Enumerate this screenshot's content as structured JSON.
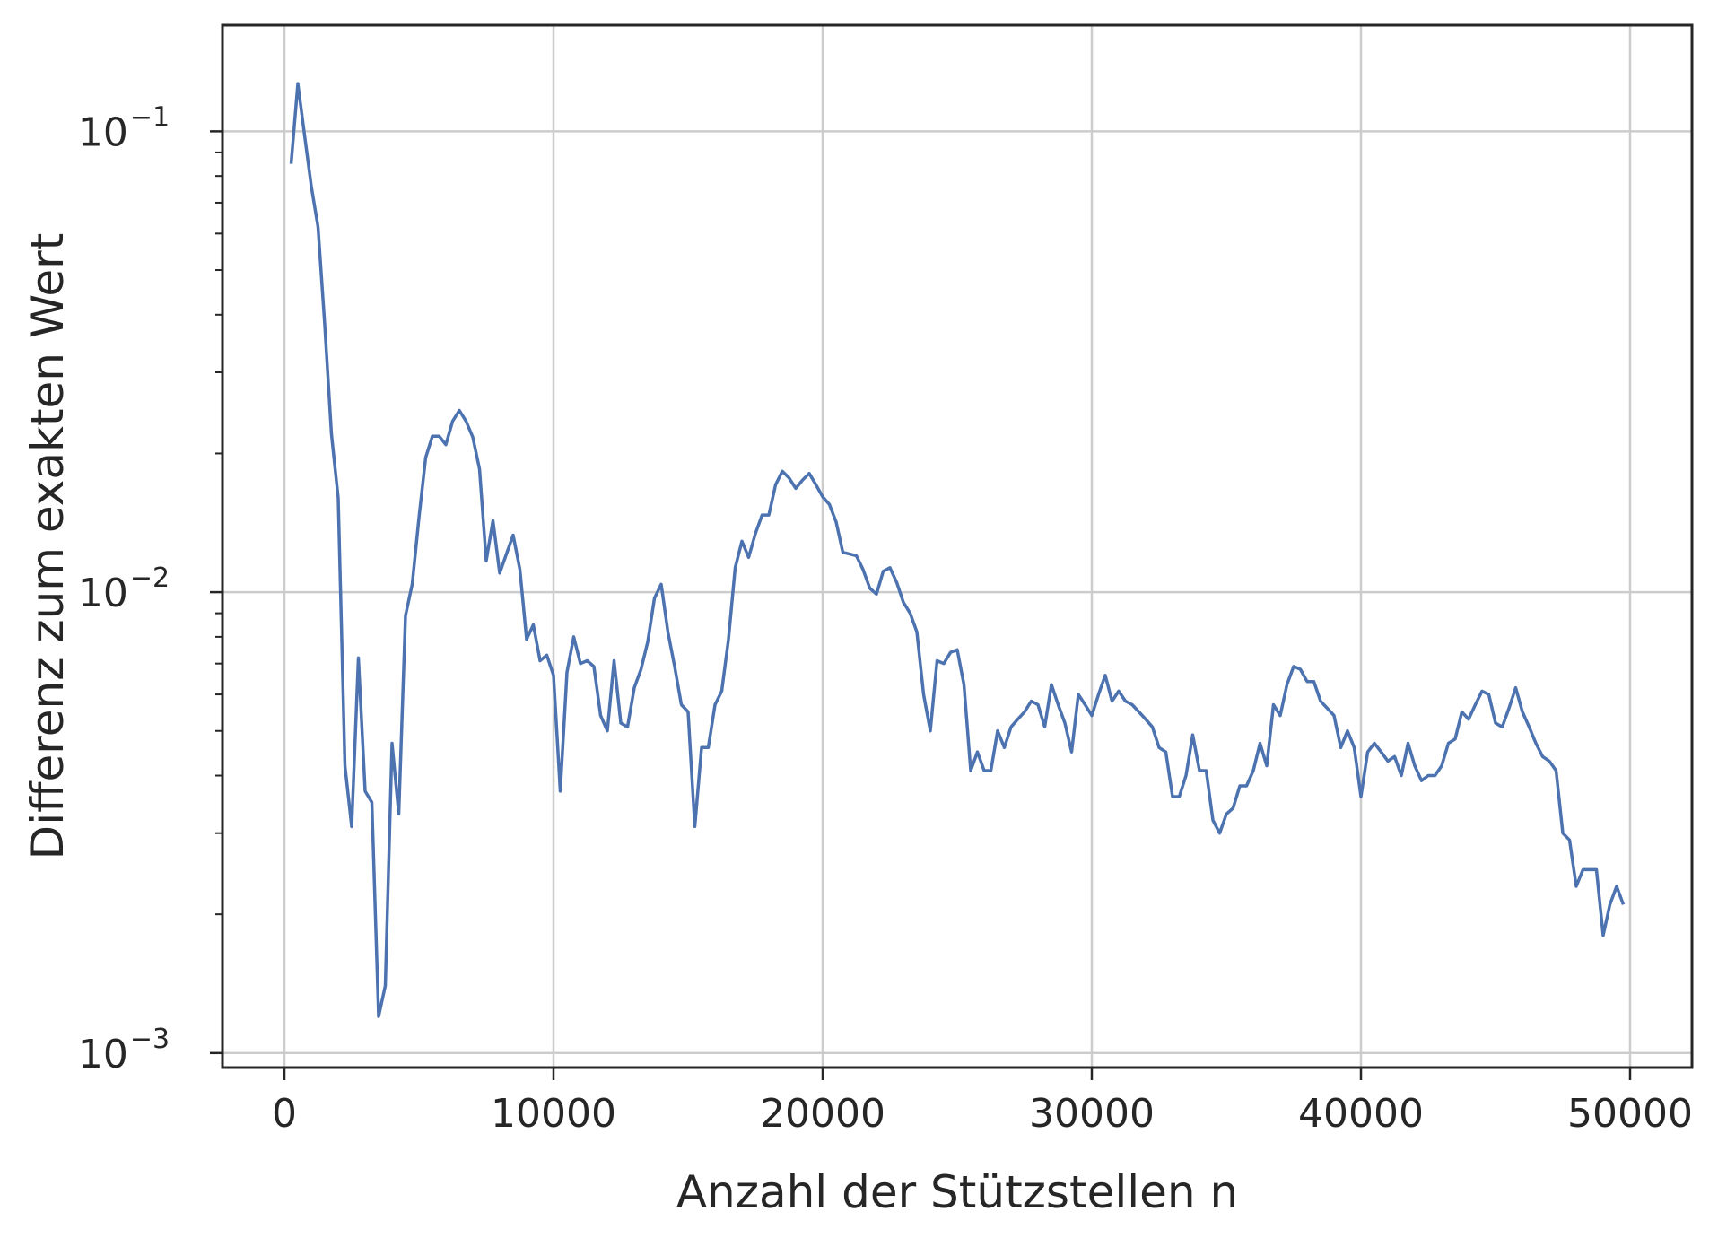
{
  "chart_data": {
    "type": "line",
    "title": "",
    "xlabel": "Anzahl der Stützstellen n",
    "ylabel": "Differenz zum exakten Wert",
    "xlim": [
      -2300,
      52300
    ],
    "ylim": [
      0.00093,
      0.17
    ],
    "yscale": "log",
    "grid": true,
    "line_color": "#4c72b0",
    "x_ticks": [
      {
        "value": 0,
        "label": "0"
      },
      {
        "value": 10000,
        "label": "10000"
      },
      {
        "value": 20000,
        "label": "20000"
      },
      {
        "value": 30000,
        "label": "30000"
      },
      {
        "value": 40000,
        "label": "40000"
      },
      {
        "value": 50000,
        "label": "50000"
      }
    ],
    "y_ticks": [
      {
        "value": 0.1,
        "base": "10",
        "exp": "−1"
      },
      {
        "value": 0.01,
        "base": "10",
        "exp": "−2"
      },
      {
        "value": 0.001,
        "base": "10",
        "exp": "−3"
      }
    ],
    "series": [
      {
        "x": [
          250,
          500,
          750,
          1000,
          1250,
          1500,
          1750,
          2000,
          2250,
          2500,
          2750,
          3000,
          3250,
          3500,
          3750,
          4000,
          4250,
          4500,
          4750,
          5000,
          5250,
          5500,
          5750,
          6000,
          6250,
          6500,
          6750,
          7000,
          7250,
          7500,
          7750,
          8000,
          8250,
          8500,
          8750,
          9000,
          9250,
          9500,
          9750,
          10000,
          10250,
          10500,
          10750,
          11000,
          11250,
          11500,
          11750,
          12000,
          12250,
          12500,
          12750,
          13000,
          13250,
          13500,
          13750,
          14000,
          14250,
          14500,
          14750,
          15000,
          15250,
          15500,
          15750,
          16000,
          16250,
          16500,
          16750,
          17000,
          17250,
          17500,
          17750,
          18000,
          18250,
          18500,
          18750,
          19000,
          19250,
          19500,
          19750,
          20000,
          20250,
          20500,
          20750,
          21000,
          21250,
          21500,
          21750,
          22000,
          22250,
          22500,
          22750,
          23000,
          23250,
          23500,
          23750,
          24000,
          24250,
          24500,
          24750,
          25000,
          25250,
          25500,
          25750,
          26000,
          26250,
          26500,
          26750,
          27000,
          27250,
          27500,
          27750,
          28000,
          28250,
          28500,
          28750,
          29000,
          29250,
          29500,
          29750,
          30000,
          30250,
          30500,
          30750,
          31000,
          31250,
          31500,
          31750,
          32000,
          32250,
          32500,
          32750,
          33000,
          33250,
          33500,
          33750,
          34000,
          34250,
          34500,
          34750,
          35000,
          35250,
          35500,
          35750,
          36000,
          36250,
          36500,
          36750,
          37000,
          37250,
          37500,
          37750,
          38000,
          38250,
          38500,
          38750,
          39000,
          39250,
          39500,
          39750,
          40000,
          40250,
          40500,
          40750,
          41000,
          41250,
          41500,
          41750,
          42000,
          42250,
          42500,
          42750,
          43000,
          43250,
          43500,
          43750,
          44000,
          44250,
          44500,
          44750,
          45000,
          45250,
          45500,
          45750,
          46000,
          46250,
          46500,
          46750,
          47000,
          47250,
          47500,
          47750,
          48000,
          48250,
          48500,
          48750,
          49000,
          49250,
          49500,
          49750
        ],
        "y": [
          0.085,
          0.127,
          0.098,
          0.076,
          0.062,
          0.038,
          0.022,
          0.016,
          0.0042,
          0.0031,
          0.0072,
          0.0037,
          0.0035,
          0.0012,
          0.0014,
          0.0047,
          0.0033,
          0.0089,
          0.0104,
          0.0145,
          0.0196,
          0.0218,
          0.0218,
          0.0209,
          0.0235,
          0.0248,
          0.0235,
          0.0217,
          0.0185,
          0.0117,
          0.0143,
          0.011,
          0.0121,
          0.0133,
          0.0112,
          0.0079,
          0.0085,
          0.0071,
          0.0073,
          0.0066,
          0.0037,
          0.0067,
          0.008,
          0.007,
          0.0071,
          0.0069,
          0.0054,
          0.005,
          0.0071,
          0.0052,
          0.0051,
          0.0062,
          0.0068,
          0.0078,
          0.0097,
          0.0104,
          0.0082,
          0.0069,
          0.0057,
          0.0055,
          0.0031,
          0.0046,
          0.0046,
          0.0057,
          0.0061,
          0.0079,
          0.0113,
          0.0129,
          0.0119,
          0.0134,
          0.0147,
          0.0147,
          0.0171,
          0.0183,
          0.0177,
          0.0168,
          0.0175,
          0.0181,
          0.0171,
          0.0161,
          0.0155,
          0.0142,
          0.0122,
          0.0121,
          0.012,
          0.0112,
          0.0102,
          0.0099,
          0.0111,
          0.0113,
          0.0105,
          0.0095,
          0.009,
          0.0082,
          0.006,
          0.005,
          0.0071,
          0.007,
          0.0074,
          0.0075,
          0.0063,
          0.0041,
          0.0045,
          0.0041,
          0.0041,
          0.005,
          0.0046,
          0.0051,
          0.0053,
          0.0055,
          0.0058,
          0.0057,
          0.0051,
          0.0063,
          0.0057,
          0.0052,
          0.0045,
          0.006,
          0.0057,
          0.0054,
          0.006,
          0.0066,
          0.0058,
          0.0061,
          0.0058,
          0.0057,
          0.0055,
          0.0053,
          0.0051,
          0.0046,
          0.0045,
          0.0036,
          0.0036,
          0.004,
          0.0049,
          0.0041,
          0.0041,
          0.0032,
          0.003,
          0.0033,
          0.0034,
          0.0038,
          0.0038,
          0.0041,
          0.0047,
          0.0042,
          0.0057,
          0.0054,
          0.0063,
          0.0069,
          0.0068,
          0.0064,
          0.0064,
          0.0058,
          0.0056,
          0.0054,
          0.0046,
          0.005,
          0.0046,
          0.0036,
          0.0045,
          0.0047,
          0.0045,
          0.0043,
          0.0044,
          0.004,
          0.0047,
          0.0042,
          0.0039,
          0.004,
          0.004,
          0.0042,
          0.0047,
          0.0048,
          0.0055,
          0.0053,
          0.0057,
          0.0061,
          0.006,
          0.0052,
          0.0051,
          0.0056,
          0.0062,
          0.0055,
          0.0051,
          0.0047,
          0.0044,
          0.0043,
          0.0041,
          0.003,
          0.0029,
          0.0023,
          0.0025,
          0.0025,
          0.0025,
          0.0018,
          0.0021,
          0.0023,
          0.0021
        ]
      }
    ]
  }
}
